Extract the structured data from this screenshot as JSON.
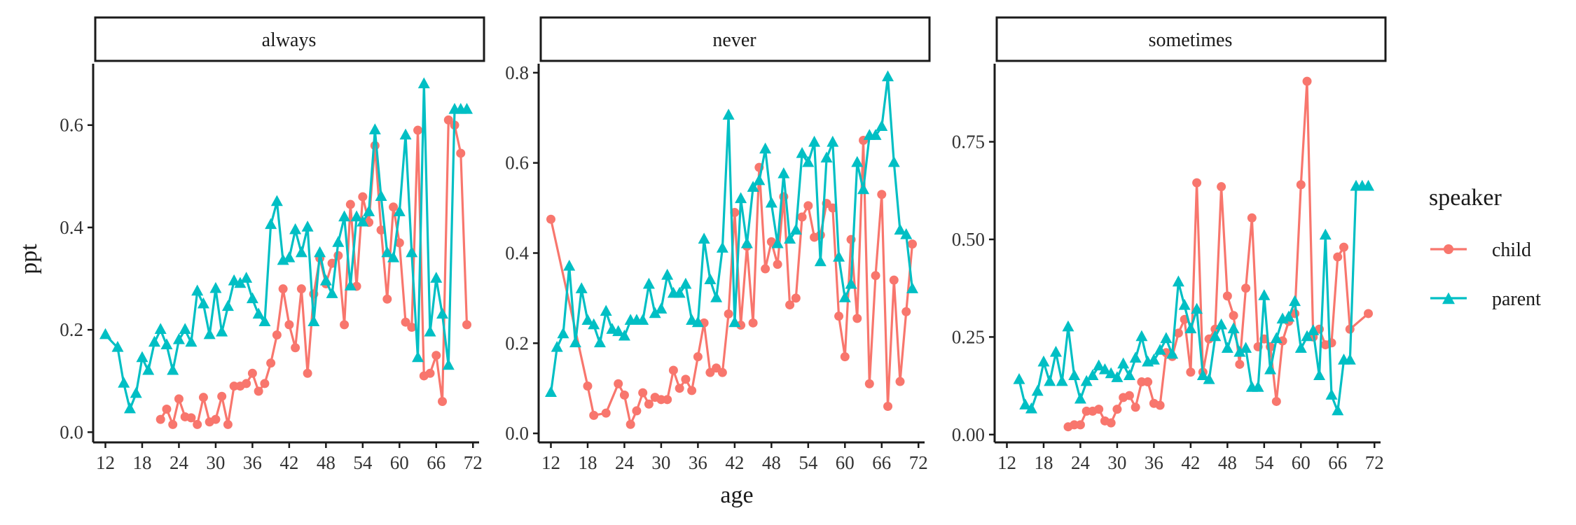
{
  "chart_data": {
    "type": "line",
    "xlabel": "age",
    "ylabel": "ppt",
    "legend_title": "speaker",
    "legend_position": "right",
    "grid": false,
    "colors": {
      "child": "#F8766D",
      "parent": "#00BFC4"
    },
    "xlim": [
      10,
      73
    ],
    "x_ticks": [
      12,
      18,
      24,
      30,
      36,
      42,
      48,
      54,
      60,
      66,
      72
    ],
    "series_names": [
      "child",
      "parent"
    ],
    "panels": [
      {
        "strip": "always",
        "ylim": [
          -0.02,
          0.72
        ],
        "y_ticks": [
          0.0,
          0.2,
          0.4,
          0.6
        ],
        "y_tick_labels": [
          "0.0",
          "0.2",
          "0.4",
          "0.6"
        ],
        "series": [
          {
            "name": "child",
            "x": [
              21,
              22,
              23,
              24,
              25,
              26,
              27,
              28,
              29,
              30,
              31,
              32,
              33,
              34,
              35,
              36,
              37,
              38,
              39,
              40,
              41,
              42,
              43,
              44,
              45,
              46,
              47,
              48,
              49,
              50,
              51,
              52,
              53,
              54,
              55,
              56,
              57,
              58,
              59,
              60,
              61,
              62,
              63,
              64,
              65,
              66,
              67,
              68,
              69,
              70,
              71
            ],
            "y": [
              0.025,
              0.045,
              0.015,
              0.065,
              0.03,
              0.028,
              0.015,
              0.068,
              0.02,
              0.025,
              0.07,
              0.015,
              0.09,
              0.09,
              0.095,
              0.115,
              0.08,
              0.095,
              0.135,
              0.19,
              0.28,
              0.21,
              0.165,
              0.28,
              0.115,
              0.27,
              0.34,
              0.29,
              0.33,
              0.345,
              0.21,
              0.445,
              0.285,
              0.46,
              0.41,
              0.56,
              0.395,
              0.26,
              0.44,
              0.37,
              0.215,
              0.205,
              0.59,
              0.11,
              0.115,
              0.15,
              0.06,
              0.61,
              0.6,
              0.545,
              0.21
            ]
          },
          {
            "name": "parent",
            "x": [
              12,
              14,
              15,
              16,
              17,
              18,
              19,
              20,
              21,
              22,
              23,
              24,
              25,
              26,
              27,
              28,
              29,
              30,
              31,
              32,
              33,
              34,
              35,
              36,
              37,
              38,
              39,
              40,
              41,
              42,
              43,
              44,
              45,
              46,
              47,
              48,
              49,
              50,
              51,
              52,
              53,
              54,
              55,
              56,
              57,
              58,
              59,
              60,
              61,
              62,
              63,
              64,
              65,
              66,
              67,
              68,
              69,
              70,
              71
            ],
            "y": [
              0.19,
              0.165,
              0.095,
              0.045,
              0.075,
              0.145,
              0.12,
              0.175,
              0.2,
              0.17,
              0.12,
              0.18,
              0.2,
              0.175,
              0.275,
              0.25,
              0.19,
              0.28,
              0.195,
              0.245,
              0.295,
              0.29,
              0.3,
              0.26,
              0.23,
              0.215,
              0.405,
              0.45,
              0.335,
              0.34,
              0.395,
              0.35,
              0.4,
              0.215,
              0.35,
              0.295,
              0.27,
              0.37,
              0.42,
              0.285,
              0.42,
              0.41,
              0.43,
              0.59,
              0.46,
              0.35,
              0.34,
              0.43,
              0.58,
              0.35,
              0.145,
              0.68,
              0.195,
              0.3,
              0.23,
              0.13,
              0.63,
              0.63,
              0.63
            ]
          }
        ]
      },
      {
        "strip": "never",
        "ylim": [
          -0.02,
          0.82
        ],
        "y_ticks": [
          0.0,
          0.2,
          0.4,
          0.6,
          0.8
        ],
        "y_tick_labels": [
          "0.0",
          "0.2",
          "0.4",
          "0.6",
          "0.8"
        ],
        "series": [
          {
            "name": "child",
            "x": [
              12,
              18,
              19,
              21,
              23,
              24,
              25,
              26,
              27,
              28,
              29,
              30,
              31,
              32,
              33,
              34,
              35,
              36,
              37,
              38,
              39,
              40,
              41,
              42,
              43,
              44,
              45,
              46,
              47,
              48,
              49,
              50,
              51,
              52,
              53,
              54,
              55,
              56,
              57,
              58,
              59,
              60,
              61,
              62,
              63,
              64,
              65,
              66,
              67,
              68,
              69,
              70,
              71
            ],
            "y": [
              0.475,
              0.105,
              0.04,
              0.045,
              0.11,
              0.085,
              0.02,
              0.05,
              0.09,
              0.065,
              0.08,
              0.075,
              0.075,
              0.14,
              0.1,
              0.12,
              0.095,
              0.17,
              0.245,
              0.135,
              0.145,
              0.135,
              0.265,
              0.49,
              0.24,
              0.415,
              0.245,
              0.59,
              0.365,
              0.425,
              0.375,
              0.525,
              0.285,
              0.3,
              0.48,
              0.505,
              0.435,
              0.44,
              0.51,
              0.5,
              0.26,
              0.17,
              0.43,
              0.255,
              0.65,
              0.11,
              0.35,
              0.53,
              0.06,
              0.34,
              0.115,
              0.27,
              0.42
            ]
          },
          {
            "name": "parent",
            "x": [
              12,
              13,
              14,
              15,
              16,
              17,
              18,
              19,
              20,
              21,
              22,
              23,
              24,
              25,
              26,
              27,
              28,
              29,
              30,
              31,
              32,
              33,
              34,
              35,
              36,
              37,
              38,
              39,
              40,
              41,
              42,
              43,
              44,
              45,
              46,
              47,
              48,
              49,
              50,
              51,
              52,
              53,
              54,
              55,
              56,
              57,
              58,
              59,
              60,
              61,
              62,
              63,
              64,
              65,
              66,
              67,
              68,
              69,
              70,
              71
            ],
            "y": [
              0.09,
              0.19,
              0.22,
              0.37,
              0.2,
              0.32,
              0.25,
              0.24,
              0.2,
              0.27,
              0.23,
              0.225,
              0.215,
              0.25,
              0.25,
              0.25,
              0.33,
              0.265,
              0.275,
              0.35,
              0.31,
              0.31,
              0.33,
              0.25,
              0.245,
              0.43,
              0.34,
              0.3,
              0.41,
              0.705,
              0.245,
              0.52,
              0.42,
              0.545,
              0.56,
              0.63,
              0.51,
              0.42,
              0.575,
              0.43,
              0.45,
              0.62,
              0.6,
              0.645,
              0.38,
              0.61,
              0.645,
              0.39,
              0.3,
              0.33,
              0.6,
              0.54,
              0.66,
              0.66,
              0.68,
              0.79,
              0.6,
              0.45,
              0.44,
              0.32
            ]
          }
        ]
      },
      {
        "strip": "sometimes",
        "ylim": [
          -0.02,
          0.95
        ],
        "y_ticks": [
          0.0,
          0.25,
          0.5,
          0.75
        ],
        "y_tick_labels": [
          "0.00",
          "0.25",
          "0.50",
          "0.75"
        ],
        "series": [
          {
            "name": "child",
            "x": [
              22,
              23,
              24,
              25,
              26,
              27,
              28,
              29,
              30,
              31,
              32,
              33,
              34,
              35,
              36,
              37,
              38,
              39,
              40,
              41,
              42,
              43,
              44,
              45,
              46,
              47,
              48,
              49,
              50,
              51,
              52,
              53,
              54,
              55,
              56,
              57,
              58,
              59,
              60,
              61,
              62,
              63,
              64,
              65,
              66,
              67,
              68,
              71
            ],
            "y": [
              0.02,
              0.025,
              0.025,
              0.06,
              0.06,
              0.065,
              0.035,
              0.03,
              0.065,
              0.095,
              0.1,
              0.07,
              0.135,
              0.135,
              0.08,
              0.075,
              0.21,
              0.2,
              0.26,
              0.295,
              0.16,
              0.645,
              0.16,
              0.245,
              0.27,
              0.635,
              0.355,
              0.305,
              0.18,
              0.375,
              0.555,
              0.225,
              0.245,
              0.225,
              0.085,
              0.24,
              0.29,
              0.31,
              0.64,
              0.905,
              0.25,
              0.27,
              0.23,
              0.235,
              0.455,
              0.48,
              0.27,
              0.31
            ]
          },
          {
            "name": "parent",
            "x": [
              14,
              15,
              16,
              17,
              18,
              19,
              20,
              21,
              22,
              23,
              24,
              25,
              26,
              27,
              28,
              29,
              30,
              31,
              32,
              33,
              34,
              35,
              36,
              37,
              38,
              39,
              40,
              41,
              42,
              43,
              44,
              45,
              46,
              47,
              48,
              49,
              50,
              51,
              52,
              53,
              54,
              55,
              56,
              57,
              58,
              59,
              60,
              61,
              62,
              63,
              64,
              65,
              66,
              67,
              68,
              69,
              70,
              71
            ],
            "y": [
              0.14,
              0.075,
              0.065,
              0.11,
              0.185,
              0.135,
              0.21,
              0.135,
              0.275,
              0.15,
              0.09,
              0.135,
              0.15,
              0.175,
              0.165,
              0.155,
              0.145,
              0.18,
              0.15,
              0.195,
              0.25,
              0.185,
              0.19,
              0.215,
              0.245,
              0.205,
              0.39,
              0.33,
              0.27,
              0.32,
              0.15,
              0.14,
              0.25,
              0.28,
              0.22,
              0.27,
              0.21,
              0.22,
              0.12,
              0.12,
              0.355,
              0.165,
              0.245,
              0.295,
              0.3,
              0.34,
              0.22,
              0.25,
              0.265,
              0.15,
              0.51,
              0.1,
              0.06,
              0.19,
              0.19,
              0.635,
              0.635,
              0.635
            ]
          }
        ]
      }
    ]
  }
}
